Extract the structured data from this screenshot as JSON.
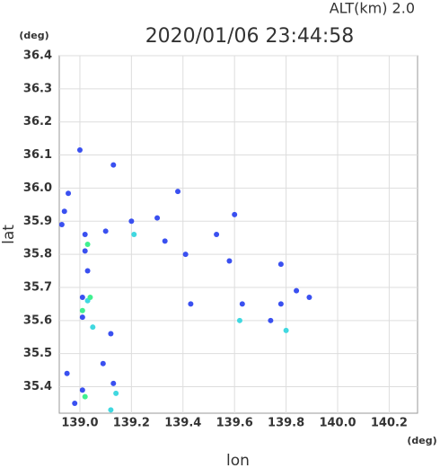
{
  "header": "ALT(km)  2.0",
  "chart_data": {
    "type": "scatter",
    "title": "2020/01/06 23:44:58",
    "x_label": "lon",
    "y_label": "lat",
    "x_unit": "(deg)",
    "y_unit": "(deg)",
    "xlim": [
      138.92,
      140.31
    ],
    "ylim": [
      35.32,
      36.4
    ],
    "xticks": [
      {
        "value": 139,
        "label": "139.0"
      },
      139.2,
      139.4,
      139.6,
      139.8,
      {
        "value": 140,
        "label": "140.0"
      },
      140.2
    ],
    "yticks": [
      35.4,
      35.5,
      35.6,
      35.7,
      35.8,
      35.9,
      {
        "value": 36,
        "label": "36.0"
      },
      36.1,
      36.2,
      36.3,
      36.4
    ],
    "grid": true,
    "series": [
      {
        "color": "#3a50f0",
        "x": [
          139.0,
          138.955,
          138.94,
          138.93,
          139.02,
          139.02,
          139.03,
          139.01,
          139.01,
          139.1,
          139.12,
          139.09,
          139.01,
          138.95,
          139.13,
          138.98,
          139.3,
          139.33,
          139.2,
          139.13,
          139.6,
          139.58,
          139.63,
          139.84,
          139.78,
          139.74,
          139.78,
          139.89,
          139.43,
          139.41,
          139.53,
          139.38
        ],
        "y": [
          36.115,
          35.984,
          35.93,
          35.89,
          35.86,
          35.81,
          35.75,
          35.67,
          35.61,
          35.87,
          35.56,
          35.47,
          35.39,
          35.44,
          35.41,
          35.35,
          35.91,
          35.84,
          35.9,
          36.07,
          35.92,
          35.78,
          35.65,
          35.69,
          35.65,
          35.6,
          35.77,
          35.67,
          35.65,
          35.8,
          35.86,
          35.99
        ]
      },
      {
        "color": "#40d8e0",
        "x": [
          139.03,
          139.05,
          139.14,
          139.12,
          139.62,
          139.8,
          139.21
        ],
        "y": [
          35.66,
          35.58,
          35.38,
          35.33,
          35.6,
          35.57,
          35.86
        ]
      },
      {
        "color": "#40f090",
        "x": [
          139.01,
          139.04,
          139.03,
          139.02
        ],
        "y": [
          35.63,
          35.67,
          35.83,
          35.37
        ]
      }
    ]
  }
}
